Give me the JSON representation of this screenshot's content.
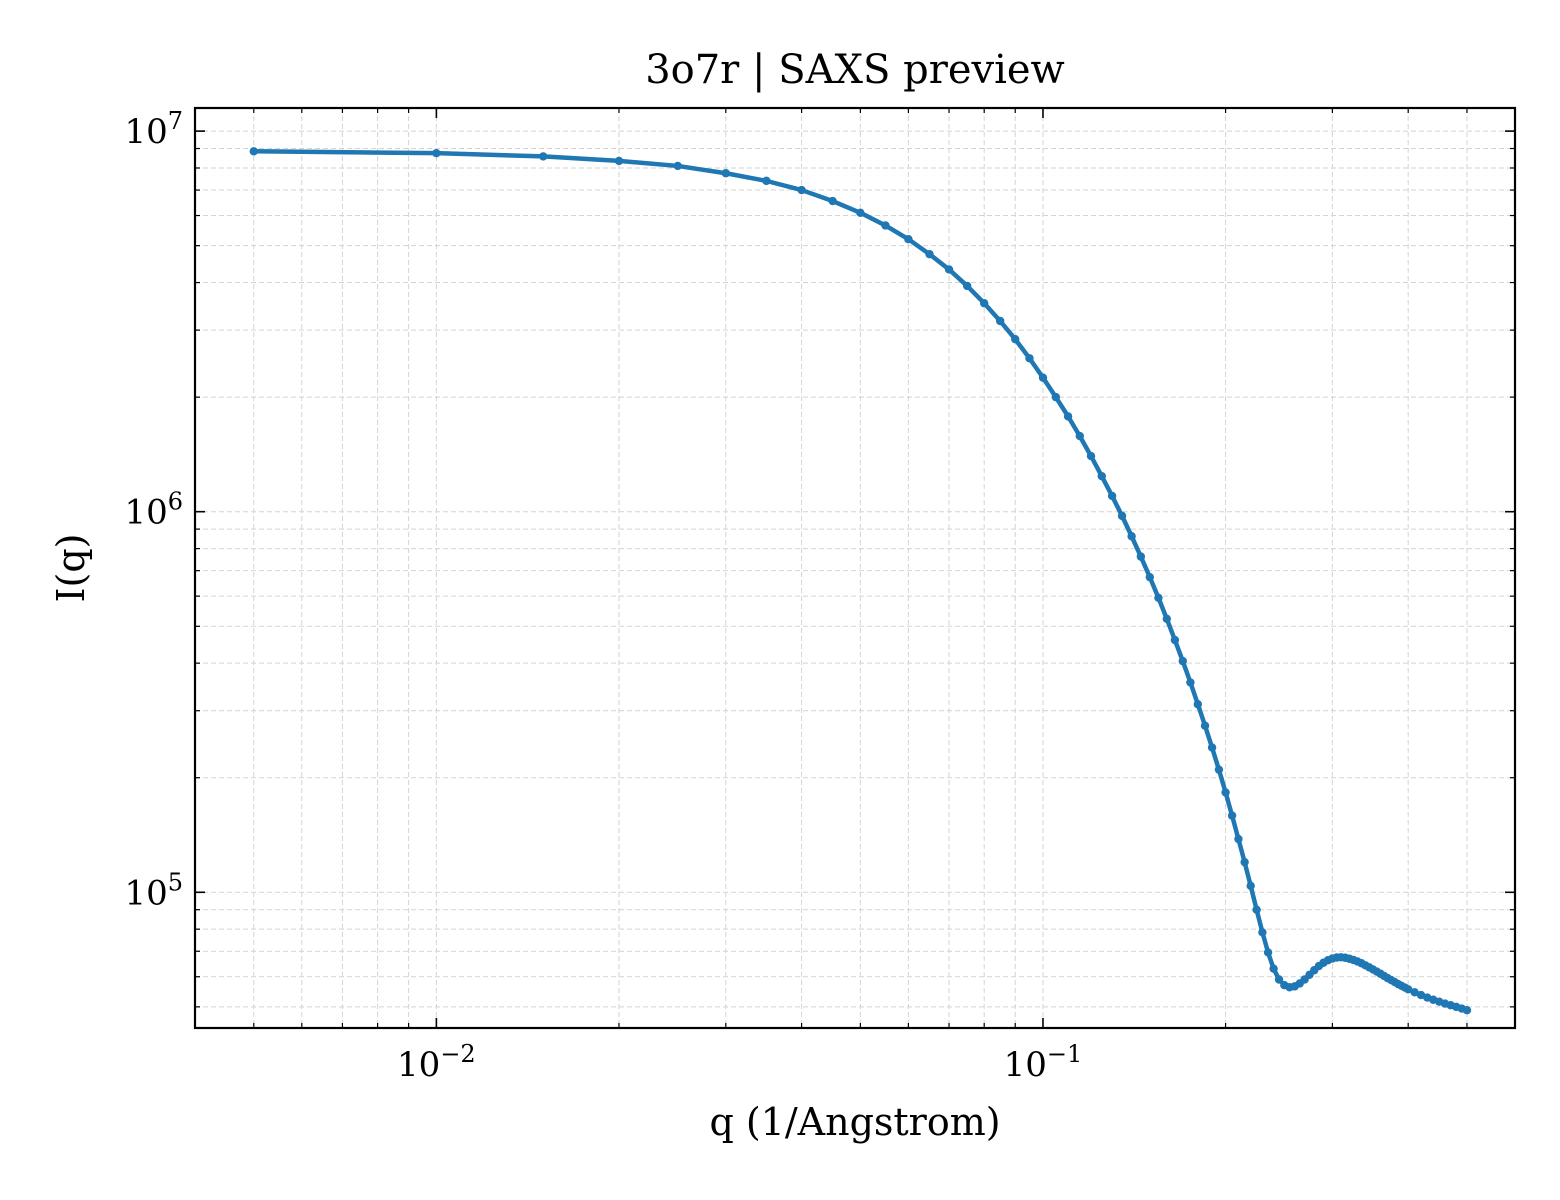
{
  "chart_data": {
    "type": "line",
    "title": "3o7r | SAXS preview",
    "xlabel": "q (1/Angstrom)",
    "ylabel": "I(q)",
    "xscale": "log",
    "yscale": "log",
    "xlim": [
      0.004,
      0.6
    ],
    "ylim": [
      44000,
      11500000
    ],
    "grid": true,
    "legend": "none",
    "x_tick_labels": [
      {
        "base": "10",
        "exp": "−2",
        "value": 0.01
      },
      {
        "base": "10",
        "exp": "−1",
        "value": 0.1
      }
    ],
    "y_tick_labels": [
      {
        "base": "10",
        "exp": "5",
        "value": 100000
      },
      {
        "base": "10",
        "exp": "6",
        "value": 1000000
      },
      {
        "base": "10",
        "exp": "7",
        "value": 10000000
      }
    ],
    "series": [
      {
        "color": "#1f77b4",
        "marker": "circle",
        "x": [
          0.005,
          0.01,
          0.015,
          0.02,
          0.025,
          0.03,
          0.035,
          0.04,
          0.045,
          0.05,
          0.055,
          0.06,
          0.065,
          0.07,
          0.075,
          0.08,
          0.085,
          0.09,
          0.095,
          0.1,
          0.105,
          0.11,
          0.115,
          0.12,
          0.125,
          0.13,
          0.135,
          0.14,
          0.145,
          0.15,
          0.155,
          0.16,
          0.165,
          0.17,
          0.175,
          0.18,
          0.185,
          0.19,
          0.195,
          0.2,
          0.205,
          0.21,
          0.215,
          0.22,
          0.225,
          0.23,
          0.235,
          0.24,
          0.245,
          0.25,
          0.255,
          0.26,
          0.265,
          0.27,
          0.275,
          0.28,
          0.285,
          0.29,
          0.295,
          0.3,
          0.305,
          0.31,
          0.315,
          0.32,
          0.325,
          0.33,
          0.335,
          0.34,
          0.345,
          0.35,
          0.355,
          0.36,
          0.365,
          0.37,
          0.375,
          0.38,
          0.385,
          0.39,
          0.395,
          0.4,
          0.41,
          0.42,
          0.43,
          0.44,
          0.45,
          0.46,
          0.47,
          0.48,
          0.49,
          0.5
        ],
        "y": [
          8850000,
          8750000,
          8580000,
          8350000,
          8100000,
          7750000,
          7400000,
          7000000,
          6550000,
          6100000,
          5650000,
          5200000,
          4750000,
          4330000,
          3920000,
          3530000,
          3170000,
          2840000,
          2530000,
          2250000,
          2000000,
          1780000,
          1580000,
          1400000,
          1240000,
          1100000,
          975000,
          862000,
          762000,
          673000,
          594000,
          523000,
          460000,
          405000,
          356000,
          312000,
          274000,
          240000,
          210000,
          183000,
          159000,
          138000,
          120000,
          104000,
          90000,
          78500,
          69500,
          63000,
          59000,
          57000,
          56300,
          56600,
          57600,
          59000,
          60700,
          62400,
          64000,
          65300,
          66300,
          67000,
          67400,
          67500,
          67300,
          66900,
          66400,
          65800,
          65100,
          64300,
          63500,
          62700,
          61900,
          61100,
          60300,
          59500,
          58800,
          58100,
          57400,
          56800,
          56200,
          55600,
          54600,
          53700,
          52900,
          52200,
          51600,
          51000,
          50500,
          50000,
          49500,
          49000
        ]
      }
    ]
  }
}
